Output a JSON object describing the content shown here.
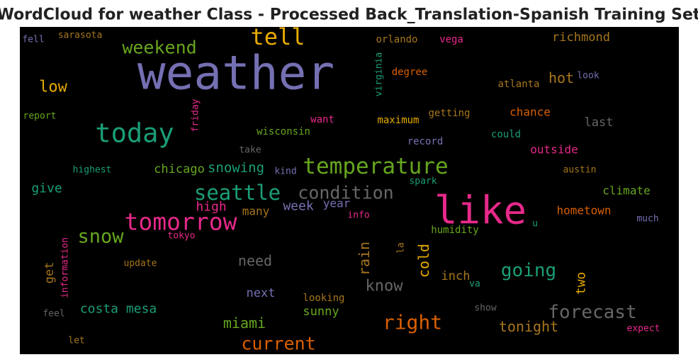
{
  "chart_data": {
    "type": "wordcloud",
    "title": "WordCloud for weather Class - Processed Back_Translation-Spanish Training Set",
    "background": "#000000",
    "words": [
      {
        "text": "weather",
        "color": "#7570b3"
      },
      {
        "text": "tell",
        "color": "#e6ab02"
      },
      {
        "text": "weekend",
        "color": "#66a61e"
      },
      {
        "text": "like",
        "color": "#e7298a"
      },
      {
        "text": "today",
        "color": "#1b9e77"
      },
      {
        "text": "temperature",
        "color": "#66a61e"
      },
      {
        "text": "seattle",
        "color": "#1b9e77"
      },
      {
        "text": "condition",
        "color": "#666666"
      },
      {
        "text": "tomorrow",
        "color": "#e7298a"
      },
      {
        "text": "snow",
        "color": "#66a61e"
      },
      {
        "text": "low",
        "color": "#e6ab02"
      },
      {
        "text": "richmond",
        "color": "#a6761d"
      },
      {
        "text": "orlando",
        "color": "#a6761d"
      },
      {
        "text": "vega",
        "color": "#e7298a"
      },
      {
        "text": "sarasota",
        "color": "#a6761d"
      },
      {
        "text": "fell",
        "color": "#7570b3"
      },
      {
        "text": "virginia",
        "color": "#1b9e77"
      },
      {
        "text": "degree",
        "color": "#d95f02"
      },
      {
        "text": "hot",
        "color": "#a6761d"
      },
      {
        "text": "look",
        "color": "#7570b3"
      },
      {
        "text": "atlanta",
        "color": "#a6761d"
      },
      {
        "text": "report",
        "color": "#66a61e"
      },
      {
        "text": "friday",
        "color": "#e7298a"
      },
      {
        "text": "want",
        "color": "#e7298a"
      },
      {
        "text": "maximum",
        "color": "#e6ab02"
      },
      {
        "text": "getting",
        "color": "#a6761d"
      },
      {
        "text": "chance",
        "color": "#d95f02"
      },
      {
        "text": "last",
        "color": "#666666"
      },
      {
        "text": "wisconsin",
        "color": "#66a61e"
      },
      {
        "text": "could",
        "color": "#1b9e77"
      },
      {
        "text": "record",
        "color": "#7570b3"
      },
      {
        "text": "take",
        "color": "#666666"
      },
      {
        "text": "outside",
        "color": "#e7298a"
      },
      {
        "text": "highest",
        "color": "#1b9e77"
      },
      {
        "text": "chicago",
        "color": "#66a61e"
      },
      {
        "text": "snowing",
        "color": "#1b9e77"
      },
      {
        "text": "kind",
        "color": "#7570b3"
      },
      {
        "text": "austin",
        "color": "#a6761d"
      },
      {
        "text": "give",
        "color": "#1b9e77"
      },
      {
        "text": "spark",
        "color": "#1b9e77"
      },
      {
        "text": "climate",
        "color": "#66a61e"
      },
      {
        "text": "high",
        "color": "#e7298a"
      },
      {
        "text": "year",
        "color": "#7570b3"
      },
      {
        "text": "week",
        "color": "#7570b3"
      },
      {
        "text": "many",
        "color": "#a6761d"
      },
      {
        "text": "info",
        "color": "#e7298a"
      },
      {
        "text": "hometown",
        "color": "#d95f02"
      },
      {
        "text": "much",
        "color": "#7570b3"
      },
      {
        "text": "humidity",
        "color": "#66a61e"
      },
      {
        "text": "u",
        "color": "#1b9e77"
      },
      {
        "text": "tokyo",
        "color": "#e7298a"
      },
      {
        "text": "information",
        "color": "#e7298a"
      },
      {
        "text": "la",
        "color": "#a6761d"
      },
      {
        "text": "rain",
        "color": "#a6761d"
      },
      {
        "text": "cold",
        "color": "#e6ab02"
      },
      {
        "text": "need",
        "color": "#666666"
      },
      {
        "text": "going",
        "color": "#1b9e77"
      },
      {
        "text": "update",
        "color": "#a6761d"
      },
      {
        "text": "get",
        "color": "#a6761d"
      },
      {
        "text": "inch",
        "color": "#a6761d"
      },
      {
        "text": "two",
        "color": "#e6ab02"
      },
      {
        "text": "know",
        "color": "#666666"
      },
      {
        "text": "next",
        "color": "#7570b3"
      },
      {
        "text": "va",
        "color": "#1b9e77"
      },
      {
        "text": "looking",
        "color": "#a6761d"
      },
      {
        "text": "sunny",
        "color": "#66a61e"
      },
      {
        "text": "costa mesa",
        "color": "#1b9e77"
      },
      {
        "text": "show",
        "color": "#666666"
      },
      {
        "text": "forecast",
        "color": "#666666"
      },
      {
        "text": "feel",
        "color": "#666666"
      },
      {
        "text": "right",
        "color": "#d95f02"
      },
      {
        "text": "miami",
        "color": "#66a61e"
      },
      {
        "text": "tonight",
        "color": "#a6761d"
      },
      {
        "text": "expect",
        "color": "#e7298a"
      },
      {
        "text": "current",
        "color": "#d95f02"
      },
      {
        "text": "let",
        "color": "#a6761d"
      }
    ]
  }
}
